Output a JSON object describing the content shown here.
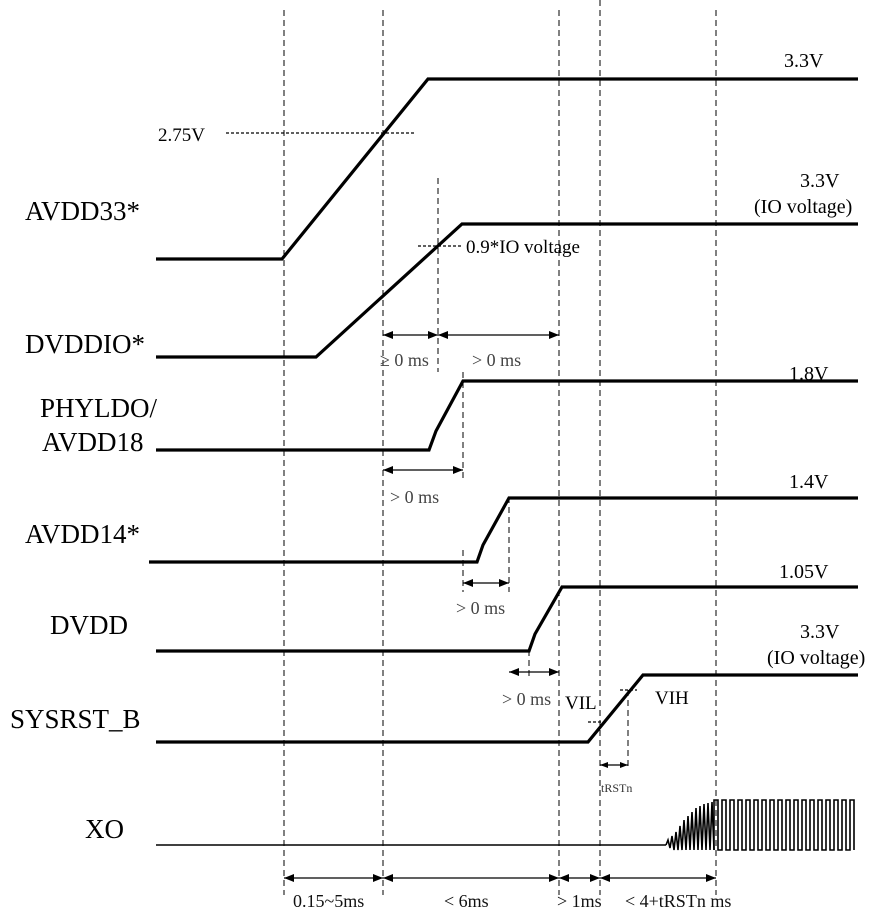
{
  "signals": [
    {
      "id": "avdd33",
      "name": "AVDD33*",
      "final": "3.3V",
      "final_note": ""
    },
    {
      "id": "dvddio",
      "name": "DVDDIO*",
      "final": "3.3V",
      "final_note": "(IO voltage)"
    },
    {
      "id": "phyldo",
      "name": "PHYLDO/",
      "name_line2": "AVDD18",
      "final": "1.8V",
      "final_note": ""
    },
    {
      "id": "avdd14",
      "name": "AVDD14*",
      "final": "1.4V",
      "final_note": ""
    },
    {
      "id": "dvdd",
      "name": "DVDD",
      "final": "1.05V",
      "final_note": ""
    },
    {
      "id": "sysrst",
      "name": "SYSRST_B",
      "final": "3.3V",
      "final_note": "(IO voltage)"
    },
    {
      "id": "xo",
      "name": "XO",
      "final": "",
      "final_note": ""
    }
  ],
  "annotations": {
    "avdd33_threshold": "2.75V",
    "dvddio_threshold": "0.9*IO voltage",
    "vil": "VIL",
    "vih": "VIH"
  },
  "timings": {
    "ge0": "≥ 0 ms",
    "gt0_a": "> 0 ms",
    "gt0_b": "> 0 ms",
    "gt0_c": "> 0 ms",
    "gt0_d": "> 0 ms",
    "trstn": "tRSTn"
  },
  "bottom_intervals": [
    "0.15~5ms",
    "< 6ms",
    "> 1ms",
    "< 4+tRSTn ms"
  ]
}
